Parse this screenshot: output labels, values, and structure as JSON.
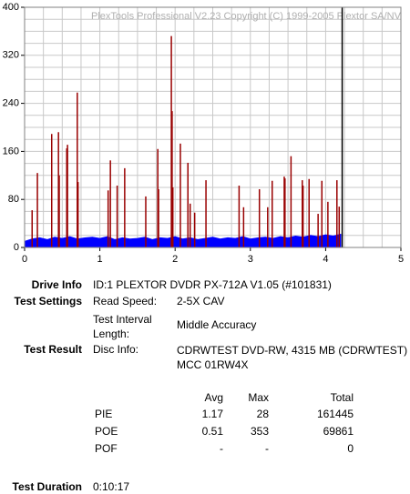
{
  "chart_data": {
    "type": "errorscan",
    "watermark": "PlexTools Professional V2.23 Copyright (C) 1999-2005 Plextor SA/NV",
    "xlim": [
      0,
      5
    ],
    "xticks": [
      0,
      1,
      2,
      3,
      4,
      5
    ],
    "ylim": [
      0,
      400
    ],
    "yticks": [
      0,
      80,
      160,
      240,
      320,
      400
    ],
    "xgrid": [
      0.25,
      0.5,
      0.75,
      1,
      1.25,
      1.5,
      1.75,
      2,
      2.25,
      2.5,
      2.75,
      3,
      3.25,
      3.5,
      3.75,
      4,
      4.25,
      4.5,
      4.75
    ],
    "ygrid": [
      20,
      40,
      60,
      80,
      100,
      120,
      140,
      160,
      180,
      200,
      220,
      240,
      260,
      280,
      300,
      320,
      340,
      360,
      380
    ],
    "end_marker": 4.22,
    "series": [
      {
        "type": "area",
        "color": "#0000ff",
        "x": [
          0,
          0.1,
          0.2,
          0.3,
          0.4,
          0.5,
          0.6,
          0.7,
          0.8,
          0.9,
          1,
          1.1,
          1.2,
          1.3,
          1.4,
          1.5,
          1.6,
          1.7,
          1.8,
          1.9,
          2,
          2.1,
          2.2,
          2.3,
          2.4,
          2.5,
          2.6,
          2.7,
          2.8,
          2.9,
          3,
          3.1,
          3.2,
          3.3,
          3.4,
          3.5,
          3.6,
          3.7,
          3.8,
          3.9,
          4,
          4.1,
          4.2
        ],
        "values": [
          10,
          14,
          16,
          13,
          17,
          15,
          18,
          14,
          16,
          17,
          15,
          18,
          13,
          16,
          14,
          15,
          17,
          13,
          16,
          15,
          18,
          14,
          16,
          13,
          15,
          17,
          14,
          16,
          15,
          18,
          14,
          16,
          17,
          15,
          18,
          16,
          19,
          17,
          20,
          18,
          21,
          19,
          22
        ]
      },
      {
        "type": "spikes",
        "color": "#990000",
        "x": [
          0.1,
          0.17,
          0.36,
          0.45,
          0.46,
          0.56,
          0.57,
          0.7,
          0.71,
          1.11,
          1.14,
          1.23,
          1.33,
          1.61,
          1.77,
          1.78,
          1.95,
          1.96,
          1.97,
          2.07,
          2.17,
          2.2,
          2.26,
          2.41,
          2.85,
          2.91,
          3.12,
          3.23,
          3.29,
          3.45,
          3.46,
          3.54,
          3.69,
          3.7,
          3.78,
          3.9,
          3.95,
          4.03,
          4.15,
          4.18
        ],
        "values": [
          62,
          124,
          189,
          192,
          120,
          165,
          171,
          258,
          109,
          95,
          145,
          103,
          132,
          85,
          164,
          97,
          352,
          227,
          100,
          173,
          141,
          73,
          58,
          112,
          103,
          67,
          97,
          67,
          111,
          118,
          115,
          152,
          112,
          103,
          114,
          56,
          111,
          76,
          112,
          68
        ]
      }
    ]
  },
  "info": {
    "drive": {
      "label": "Drive Info",
      "value": "ID:1 PLEXTOR DVDR PX-712A V1.05 (#101831)"
    },
    "settings": {
      "label": "Test Settings",
      "read_speed_label": "Read Speed:",
      "read_speed": "2-5X CAV",
      "interval_label": "Test Interval Length:",
      "interval": "Middle Accuracy"
    },
    "result": {
      "label": "Test Result",
      "disc_label": "Disc Info:",
      "disc": "CDRWTEST DVD-RW, 4315 MB (CDRWTEST) MCC 01RW4X"
    },
    "table": {
      "header": [
        "Avg",
        "Max",
        "Total"
      ],
      "rows": [
        [
          "PIE",
          "1.17",
          "28",
          "161445"
        ],
        [
          "POE",
          "0.51",
          "353",
          "69861"
        ],
        [
          "POF",
          "-",
          "-",
          "0"
        ]
      ]
    },
    "duration": {
      "label": "Test Duration",
      "value": "0:10:17"
    }
  }
}
